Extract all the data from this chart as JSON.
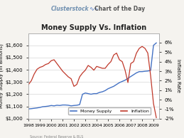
{
  "title": "Money Supply Vs. Inflation",
  "header_left": "Clusterstock",
  "header_right": "Chart of the Day",
  "ylabel_left": "Money Supply (in Billions)",
  "ylabel_right": "Inflation Rate",
  "source_text": "Source: Federal Reserve & BLS",
  "legend_items": [
    "Money Supply",
    "Inflation"
  ],
  "money_supply_color": "#4472c4",
  "inflation_color": "#c0392b",
  "background_color": "#f5f3ef",
  "plot_bg_color": "#ffffff",
  "ylim_left": [
    1000,
    1700
  ],
  "ylim_right": [
    -2,
    7
  ],
  "yticks_left": [
    1000,
    1100,
    1200,
    1300,
    1400,
    1500,
    1600
  ],
  "ytick_labels_left": [
    "$1,000",
    "$1,100",
    "$1,200",
    "$1,300",
    "$1,400",
    "$1,500",
    "$1,600"
  ],
  "yticks_right": [
    -2,
    -1,
    0,
    1,
    2,
    3,
    4,
    5,
    6
  ],
  "ytick_labels_right": [
    "-2%",
    "-1%",
    "0%",
    "1%",
    "2%",
    "3%",
    "4%",
    "5%",
    "6%"
  ],
  "xtick_labels": [
    "1998",
    "1999",
    "2000",
    "2001",
    "2002",
    "2003",
    "2004",
    "2005",
    "2006",
    "2007",
    "2008",
    "2009"
  ],
  "money_supply_x": [
    0.0,
    0.25,
    0.5,
    0.75,
    1.0,
    1.25,
    1.5,
    1.75,
    2.0,
    2.25,
    2.5,
    2.75,
    3.0,
    3.25,
    3.5,
    3.75,
    4.0,
    4.25,
    4.5,
    4.75,
    5.0,
    5.25,
    5.5,
    5.75,
    6.0,
    6.25,
    6.5,
    6.75,
    7.0,
    7.25,
    7.5,
    7.75,
    8.0,
    8.25,
    8.5,
    8.75,
    9.0,
    9.25,
    9.5,
    9.75,
    10.0,
    10.25,
    10.5,
    10.75,
    11.0,
    11.25
  ],
  "money_supply_y": [
    1080,
    1082,
    1085,
    1088,
    1092,
    1098,
    1100,
    1103,
    1108,
    1105,
    1110,
    1108,
    1112,
    1112,
    1110,
    1105,
    1108,
    1110,
    1115,
    1200,
    1210,
    1205,
    1200,
    1205,
    1205,
    1215,
    1220,
    1230,
    1245,
    1255,
    1265,
    1280,
    1295,
    1305,
    1315,
    1330,
    1345,
    1360,
    1375,
    1385,
    1385,
    1388,
    1390,
    1395,
    1600,
    1620
  ],
  "inflation_x": [
    0.0,
    0.25,
    0.5,
    0.75,
    1.0,
    1.25,
    1.5,
    1.75,
    2.0,
    2.25,
    2.5,
    2.75,
    3.0,
    3.25,
    3.5,
    3.75,
    4.0,
    4.25,
    4.5,
    4.75,
    5.0,
    5.25,
    5.5,
    5.75,
    6.0,
    6.25,
    6.5,
    6.75,
    7.0,
    7.25,
    7.5,
    7.75,
    8.0,
    8.25,
    8.5,
    8.75,
    9.0,
    9.25,
    9.5,
    9.75,
    10.0,
    10.25,
    10.5,
    10.75,
    11.0,
    11.25
  ],
  "inflation_y": [
    1.6,
    2.0,
    2.7,
    3.2,
    3.4,
    3.5,
    3.7,
    3.8,
    4.1,
    4.2,
    3.8,
    3.4,
    3.0,
    2.7,
    2.4,
    2.2,
    1.4,
    1.6,
    2.4,
    2.8,
    3.1,
    3.6,
    3.4,
    3.1,
    3.5,
    3.4,
    3.3,
    3.3,
    3.7,
    4.0,
    4.7,
    4.9,
    4.2,
    4.0,
    3.1,
    1.8,
    3.8,
    4.0,
    4.9,
    5.4,
    5.6,
    5.4,
    4.9,
    2.5,
    -0.4,
    -1.9
  ],
  "header_wavy_color": "#4472c4",
  "grid_color": "#cccccc",
  "tick_label_fontsize": 5,
  "title_fontsize": 7,
  "ylabel_fontsize": 5,
  "legend_fontsize": 4.5
}
